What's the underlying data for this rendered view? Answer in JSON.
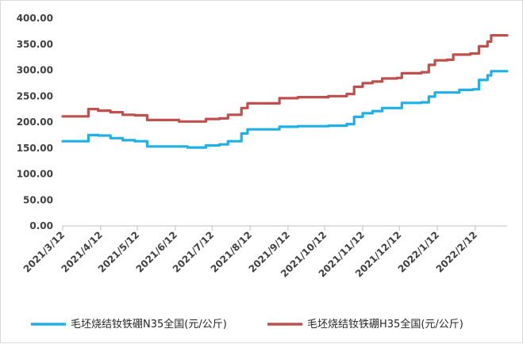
{
  "chart_data": {
    "type": "line",
    "title": "",
    "xlabel": "",
    "ylabel": "",
    "ylim": [
      0,
      400
    ],
    "x_range": [
      "2021-03-12",
      "2022-03-10"
    ],
    "y_ticks": [
      "400.00",
      "350.00",
      "300.00",
      "250.00",
      "200.00",
      "150.00",
      "100.00",
      "50.00",
      "0.00"
    ],
    "x_ticks": [
      {
        "label": "2021/3/12",
        "date": "2021-03-12"
      },
      {
        "label": "2021/4/12",
        "date": "2021-04-12"
      },
      {
        "label": "2021/5/12",
        "date": "2021-05-12"
      },
      {
        "label": "2021/6/12",
        "date": "2021-06-12"
      },
      {
        "label": "2021/7/12",
        "date": "2021-07-12"
      },
      {
        "label": "2021/8/12",
        "date": "2021-08-12"
      },
      {
        "label": "2021/9/12",
        "date": "2021-09-12"
      },
      {
        "label": "2021/10/12",
        "date": "2021-10-12"
      },
      {
        "label": "2021/11/12",
        "date": "2021-11-12"
      },
      {
        "label": "2021/12/12",
        "date": "2021-12-12"
      },
      {
        "label": "2022/1/12",
        "date": "2022-01-12"
      },
      {
        "label": "2022/2/12",
        "date": "2022-02-12"
      }
    ],
    "grid": false,
    "legend_position": "bottom",
    "series": [
      {
        "name": "毛坯烧结钕铁硼N35全国(元/公斤)",
        "color": "#1fb1e6",
        "points": [
          [
            "2021-03-12",
            163
          ],
          [
            "2021-03-30",
            163
          ],
          [
            "2021-04-02",
            175
          ],
          [
            "2021-04-10",
            174
          ],
          [
            "2021-04-20",
            169
          ],
          [
            "2021-04-30",
            165
          ],
          [
            "2021-05-10",
            163
          ],
          [
            "2021-05-18",
            163
          ],
          [
            "2021-05-20",
            153
          ],
          [
            "2021-06-20",
            153
          ],
          [
            "2021-06-22",
            151
          ],
          [
            "2021-07-05",
            151
          ],
          [
            "2021-07-07",
            155
          ],
          [
            "2021-07-18",
            157
          ],
          [
            "2021-07-25",
            163
          ],
          [
            "2021-08-05",
            178
          ],
          [
            "2021-08-10",
            186
          ],
          [
            "2021-08-30",
            186
          ],
          [
            "2021-09-05",
            191
          ],
          [
            "2021-09-20",
            192
          ],
          [
            "2021-10-15",
            193
          ],
          [
            "2021-10-30",
            196
          ],
          [
            "2021-11-05",
            210
          ],
          [
            "2021-11-12",
            217
          ],
          [
            "2021-11-20",
            221
          ],
          [
            "2021-11-28",
            227
          ],
          [
            "2021-12-10",
            227
          ],
          [
            "2021-12-14",
            237
          ],
          [
            "2021-12-30",
            238
          ],
          [
            "2022-01-05",
            249
          ],
          [
            "2022-01-10",
            257
          ],
          [
            "2022-01-30",
            262
          ],
          [
            "2022-02-10",
            263
          ],
          [
            "2022-02-15",
            281
          ],
          [
            "2022-02-22",
            290
          ],
          [
            "2022-02-25",
            298
          ],
          [
            "2022-03-10",
            298
          ]
        ]
      },
      {
        "name": "毛坯烧结钕铁硼H35全国(元/公斤)",
        "color": "#c0504d",
        "points": [
          [
            "2021-03-12",
            211
          ],
          [
            "2021-03-30",
            211
          ],
          [
            "2021-04-02",
            225
          ],
          [
            "2021-04-10",
            222
          ],
          [
            "2021-04-20",
            219
          ],
          [
            "2021-04-30",
            214
          ],
          [
            "2021-05-10",
            213
          ],
          [
            "2021-05-18",
            213
          ],
          [
            "2021-05-20",
            204
          ],
          [
            "2021-06-12",
            204
          ],
          [
            "2021-06-15",
            201
          ],
          [
            "2021-07-05",
            201
          ],
          [
            "2021-07-07",
            206
          ],
          [
            "2021-07-18",
            207
          ],
          [
            "2021-07-25",
            214
          ],
          [
            "2021-08-05",
            227
          ],
          [
            "2021-08-10",
            236
          ],
          [
            "2021-08-30",
            236
          ],
          [
            "2021-09-05",
            246
          ],
          [
            "2021-09-20",
            248
          ],
          [
            "2021-10-15",
            250
          ],
          [
            "2021-10-30",
            254
          ],
          [
            "2021-11-05",
            268
          ],
          [
            "2021-11-12",
            275
          ],
          [
            "2021-11-20",
            278
          ],
          [
            "2021-11-28",
            284
          ],
          [
            "2021-12-10",
            285
          ],
          [
            "2021-12-14",
            294
          ],
          [
            "2021-12-30",
            296
          ],
          [
            "2022-01-05",
            310
          ],
          [
            "2022-01-10",
            319
          ],
          [
            "2022-01-20",
            320
          ],
          [
            "2022-01-25",
            330
          ],
          [
            "2022-02-08",
            332
          ],
          [
            "2022-02-15",
            346
          ],
          [
            "2022-02-22",
            355
          ],
          [
            "2022-02-25",
            367
          ],
          [
            "2022-03-10",
            367
          ]
        ]
      }
    ]
  }
}
